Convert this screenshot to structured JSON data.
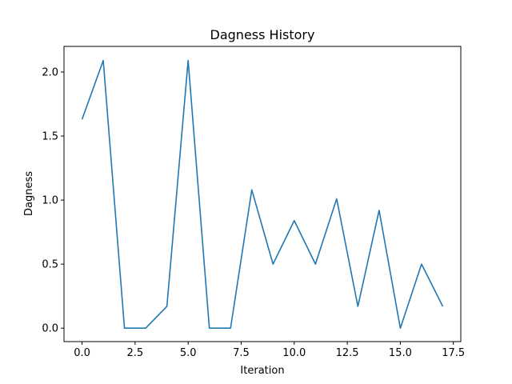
{
  "chart_data": {
    "type": "line",
    "title": "Dagness History",
    "xlabel": "Iteration",
    "ylabel": "Dagness",
    "xlim": [
      -0.85,
      17.85
    ],
    "ylim": [
      -0.105,
      2.2
    ],
    "xticks": [
      0.0,
      2.5,
      5.0,
      7.5,
      10.0,
      12.5,
      15.0,
      17.5
    ],
    "xtick_labels": [
      "0.0",
      "2.5",
      "5.0",
      "7.5",
      "10.0",
      "12.5",
      "15.0",
      "17.5"
    ],
    "yticks": [
      0.0,
      0.5,
      1.0,
      1.5,
      2.0
    ],
    "ytick_labels": [
      "0.0",
      "0.5",
      "1.0",
      "1.5",
      "2.0"
    ],
    "grid": false,
    "series": [
      {
        "color": "#1f77b4",
        "x": [
          0,
          1,
          2,
          3,
          4,
          5,
          6,
          7,
          8,
          9,
          10,
          11,
          12,
          13,
          14,
          15,
          16,
          17
        ],
        "values": [
          1.63,
          2.09,
          0.0,
          0.0,
          0.17,
          2.09,
          0.0,
          0.0,
          1.08,
          0.5,
          0.84,
          0.5,
          1.01,
          0.17,
          0.92,
          0.0,
          0.5,
          0.17
        ]
      }
    ]
  }
}
